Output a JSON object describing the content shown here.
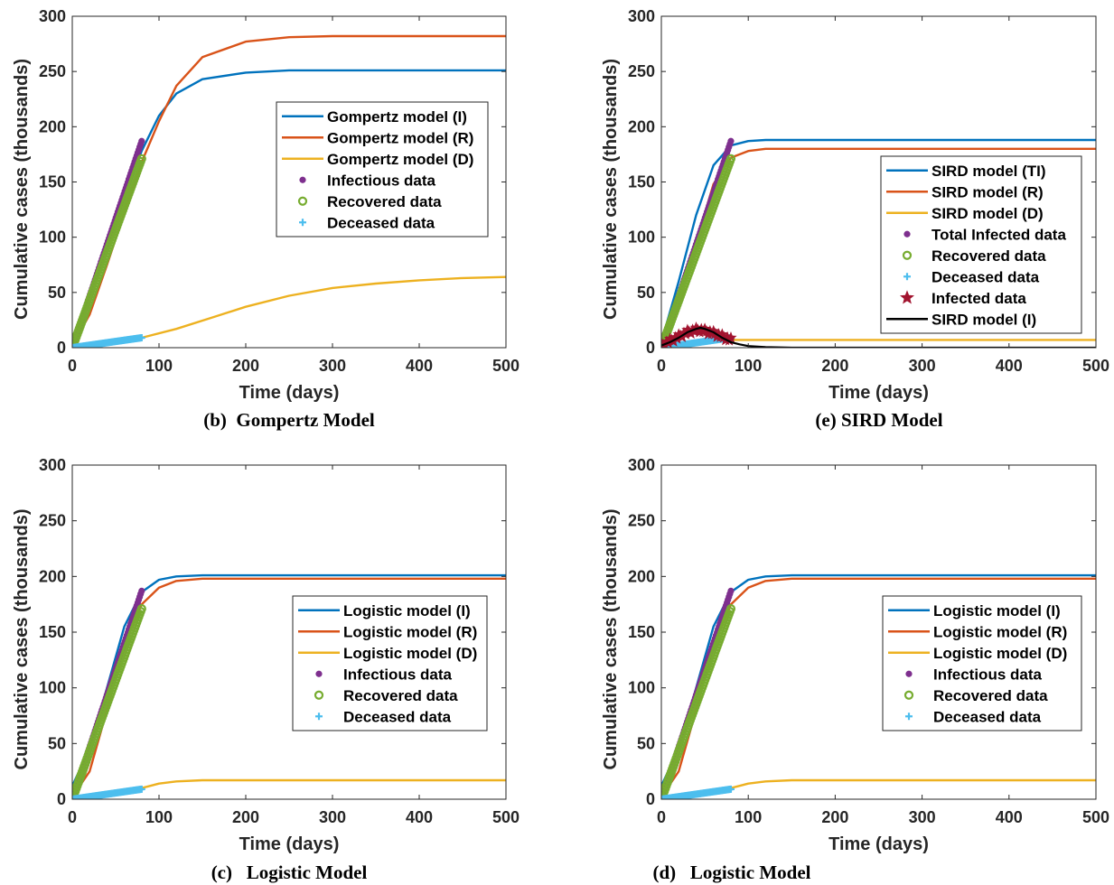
{
  "colors": {
    "I": "#0072BD",
    "R": "#D95319",
    "D": "#EDB120",
    "infectious_data": "#7E2F8E",
    "recovered_data": "#77AC30",
    "deceased_data": "#4DBEEE",
    "infected_data": "#A2142F",
    "sird_I": "#000000"
  },
  "chart_data": [
    {
      "type": "line",
      "caption": "(b)  Gompertz Model",
      "xlabel": "Time (days)",
      "ylabel": "Cumulative cases (thousands)",
      "xlim": [
        0,
        500
      ],
      "ylim": [
        0,
        300
      ],
      "xticks": [
        0,
        100,
        200,
        300,
        400,
        500
      ],
      "yticks": [
        0,
        50,
        100,
        150,
        200,
        250,
        300
      ],
      "grid": false,
      "legend_position": "center-right",
      "series": [
        {
          "name": "Gompertz model (I)",
          "kind": "line",
          "color_key": "I",
          "x": [
            0,
            20,
            40,
            60,
            80,
            100,
            120,
            150,
            200,
            250,
            300,
            400,
            500
          ],
          "y": [
            5,
            45,
            90,
            135,
            178,
            210,
            230,
            243,
            249,
            251,
            251,
            251,
            251
          ]
        },
        {
          "name": "Gompertz model (R)",
          "kind": "line",
          "color_key": "R",
          "x": [
            0,
            20,
            40,
            60,
            80,
            100,
            120,
            150,
            200,
            250,
            300,
            400,
            500
          ],
          "y": [
            2,
            30,
            75,
            122,
            168,
            205,
            237,
            263,
            277,
            281,
            282,
            282,
            282
          ]
        },
        {
          "name": "Gompertz model (D)",
          "kind": "line",
          "color_key": "D",
          "x": [
            0,
            40,
            80,
            120,
            160,
            200,
            250,
            300,
            350,
            400,
            450,
            500
          ],
          "y": [
            0,
            4,
            9,
            17,
            27,
            37,
            47,
            54,
            58,
            61,
            63,
            64
          ]
        },
        {
          "name": "Infectious data",
          "kind": "dots",
          "color_key": "infectious_data",
          "x": [
            0,
            80
          ],
          "y": [
            0,
            187
          ]
        },
        {
          "name": "Recovered data",
          "kind": "circles",
          "color_key": "recovered_data",
          "x": [
            0,
            80
          ],
          "y": [
            0,
            171
          ]
        },
        {
          "name": "Deceased data",
          "kind": "plus",
          "color_key": "deceased_data",
          "x": [
            0,
            80
          ],
          "y": [
            0,
            9
          ]
        }
      ]
    },
    {
      "type": "line",
      "caption": "(e) SIRD Model",
      "xlabel": "Time (days)",
      "ylabel": "Cumulative cases (thousands)",
      "xlim": [
        0,
        500
      ],
      "ylim": [
        0,
        300
      ],
      "xticks": [
        0,
        100,
        200,
        300,
        400,
        500
      ],
      "yticks": [
        0,
        50,
        100,
        150,
        200,
        250,
        300
      ],
      "grid": false,
      "legend_position": "center-right",
      "series": [
        {
          "name": "SIRD model (TI)",
          "kind": "line",
          "color_key": "I",
          "x": [
            0,
            20,
            40,
            60,
            80,
            100,
            120,
            150,
            500
          ],
          "y": [
            5,
            60,
            120,
            165,
            183,
            187,
            188,
            188,
            188
          ]
        },
        {
          "name": "SIRD model (R)",
          "kind": "line",
          "color_key": "R",
          "x": [
            0,
            20,
            40,
            60,
            80,
            100,
            120,
            150,
            500
          ],
          "y": [
            0,
            35,
            95,
            148,
            172,
            178,
            180,
            180,
            180
          ]
        },
        {
          "name": "SIRD model (D)",
          "kind": "line",
          "color_key": "D",
          "x": [
            0,
            20,
            40,
            60,
            80,
            100,
            500
          ],
          "y": [
            0,
            2,
            4,
            6,
            7,
            7,
            7
          ]
        },
        {
          "name": "Total Infected data",
          "kind": "dots",
          "color_key": "infectious_data",
          "x": [
            0,
            80
          ],
          "y": [
            0,
            187
          ]
        },
        {
          "name": "Recovered data",
          "kind": "circles",
          "color_key": "recovered_data",
          "x": [
            0,
            80
          ],
          "y": [
            0,
            171
          ]
        },
        {
          "name": "Deceased data",
          "kind": "plus",
          "color_key": "deceased_data",
          "x": [
            0,
            80
          ],
          "y": [
            0,
            9
          ]
        },
        {
          "name": "Infected data",
          "kind": "stars",
          "color_key": "infected_data",
          "x": [
            0,
            10,
            20,
            30,
            40,
            45,
            50,
            60,
            70,
            80
          ],
          "y": [
            2,
            6,
            10,
            14,
            16,
            16,
            15,
            13,
            10,
            7
          ]
        },
        {
          "name": "SIRD model (I)",
          "kind": "line",
          "color_key": "sird_I",
          "x": [
            0,
            10,
            20,
            30,
            40,
            45,
            50,
            60,
            70,
            80,
            90,
            100,
            120,
            150,
            500
          ],
          "y": [
            2,
            5,
            9,
            14,
            17,
            18,
            17,
            14,
            9,
            5,
            3,
            1.5,
            0.5,
            0,
            0
          ]
        }
      ]
    },
    {
      "type": "line",
      "caption": "(c)   Logistic Model",
      "xlabel": "Time (days)",
      "ylabel": "Cumulative cases (thousands)",
      "xlim": [
        0,
        500
      ],
      "ylim": [
        0,
        300
      ],
      "xticks": [
        0,
        100,
        200,
        300,
        400,
        500
      ],
      "yticks": [
        0,
        50,
        100,
        150,
        200,
        250,
        300
      ],
      "grid": false,
      "legend_position": "center-right",
      "series": [
        {
          "name": "Logistic model (I)",
          "kind": "line",
          "color_key": "I",
          "x": [
            0,
            20,
            40,
            60,
            80,
            100,
            120,
            150,
            500
          ],
          "y": [
            12,
            45,
            100,
            155,
            186,
            197,
            200,
            201,
            201
          ]
        },
        {
          "name": "Logistic model (R)",
          "kind": "line",
          "color_key": "R",
          "x": [
            0,
            20,
            40,
            60,
            80,
            100,
            120,
            150,
            500
          ],
          "y": [
            2,
            25,
            80,
            138,
            175,
            190,
            196,
            198,
            198
          ]
        },
        {
          "name": "Logistic model (D)",
          "kind": "line",
          "color_key": "D",
          "x": [
            0,
            40,
            80,
            100,
            120,
            150,
            500
          ],
          "y": [
            1,
            4,
            10,
            14,
            16,
            17,
            17
          ]
        },
        {
          "name": "Infectious data",
          "kind": "dots",
          "color_key": "infectious_data",
          "x": [
            0,
            80
          ],
          "y": [
            0,
            187
          ]
        },
        {
          "name": "Recovered data",
          "kind": "circles",
          "color_key": "recovered_data",
          "x": [
            0,
            80
          ],
          "y": [
            0,
            171
          ]
        },
        {
          "name": "Deceased data",
          "kind": "plus",
          "color_key": "deceased_data",
          "x": [
            0,
            80
          ],
          "y": [
            0,
            9
          ]
        }
      ]
    },
    {
      "type": "line",
      "caption": "(d)   Logistic Model",
      "xlabel": "Time (days)",
      "ylabel": "Cumulative cases (thousands)",
      "xlim": [
        0,
        500
      ],
      "ylim": [
        0,
        300
      ],
      "xticks": [
        0,
        100,
        200,
        300,
        400,
        500
      ],
      "yticks": [
        0,
        50,
        100,
        150,
        200,
        250,
        300
      ],
      "grid": false,
      "legend_position": "center-right",
      "series": [
        {
          "name": "Logistic model (I)",
          "kind": "line",
          "color_key": "I",
          "x": [
            0,
            20,
            40,
            60,
            80,
            100,
            120,
            150,
            500
          ],
          "y": [
            12,
            45,
            100,
            155,
            186,
            197,
            200,
            201,
            201
          ]
        },
        {
          "name": "Logistic model (R)",
          "kind": "line",
          "color_key": "R",
          "x": [
            0,
            20,
            40,
            60,
            80,
            100,
            120,
            150,
            500
          ],
          "y": [
            2,
            25,
            80,
            138,
            175,
            190,
            196,
            198,
            198
          ]
        },
        {
          "name": "Logistic model (D)",
          "kind": "line",
          "color_key": "D",
          "x": [
            0,
            40,
            80,
            100,
            120,
            150,
            500
          ],
          "y": [
            1,
            4,
            10,
            14,
            16,
            17,
            17
          ]
        },
        {
          "name": "Infectious data",
          "kind": "dots",
          "color_key": "infectious_data",
          "x": [
            0,
            80
          ],
          "y": [
            0,
            187
          ]
        },
        {
          "name": "Recovered data",
          "kind": "circles",
          "color_key": "recovered_data",
          "x": [
            0,
            80
          ],
          "y": [
            0,
            171
          ]
        },
        {
          "name": "Deceased data",
          "kind": "plus",
          "color_key": "deceased_data",
          "x": [
            0,
            80
          ],
          "y": [
            0,
            9
          ]
        }
      ]
    }
  ]
}
